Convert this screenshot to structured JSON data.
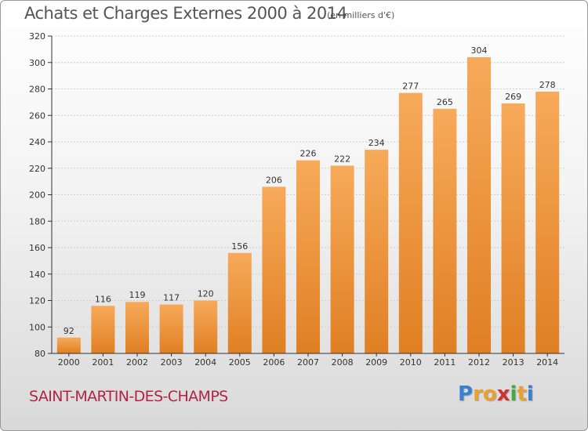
{
  "title": "Achats et Charges Externes 2000 à 2014",
  "subtitle": "(en milliers d'€)",
  "commune": "SAINT-MARTIN-DES-CHAMPS",
  "logo": {
    "text": "Proxiti",
    "letter_colors": [
      "#3a7fd0",
      "#e8a030",
      "#e8a030",
      "#d03030",
      "#44a844",
      "#e8a030",
      "#3a7fd0"
    ]
  },
  "colors": {
    "bar_light": "#f7aa5a",
    "bar_dark": "#e07f23",
    "axis": "#333333",
    "grid": "#cfcfcf",
    "title": "#555555",
    "commune": "#b1234f"
  },
  "chart_data": {
    "type": "bar",
    "title": "Achats et Charges Externes 2000 à 2014",
    "subtitle": "(en milliers d'€)",
    "categories": [
      "2000",
      "2001",
      "2002",
      "2003",
      "2004",
      "2005",
      "2006",
      "2007",
      "2008",
      "2009",
      "2010",
      "2011",
      "2012",
      "2013",
      "2014"
    ],
    "values": [
      92,
      116,
      119,
      117,
      120,
      156,
      206,
      226,
      222,
      234,
      277,
      265,
      304,
      269,
      278
    ],
    "ylim": [
      80,
      320
    ],
    "yticks": [
      80,
      100,
      120,
      140,
      160,
      180,
      200,
      220,
      240,
      260,
      280,
      300,
      320
    ],
    "grid": true,
    "xlabel": "",
    "ylabel": ""
  }
}
